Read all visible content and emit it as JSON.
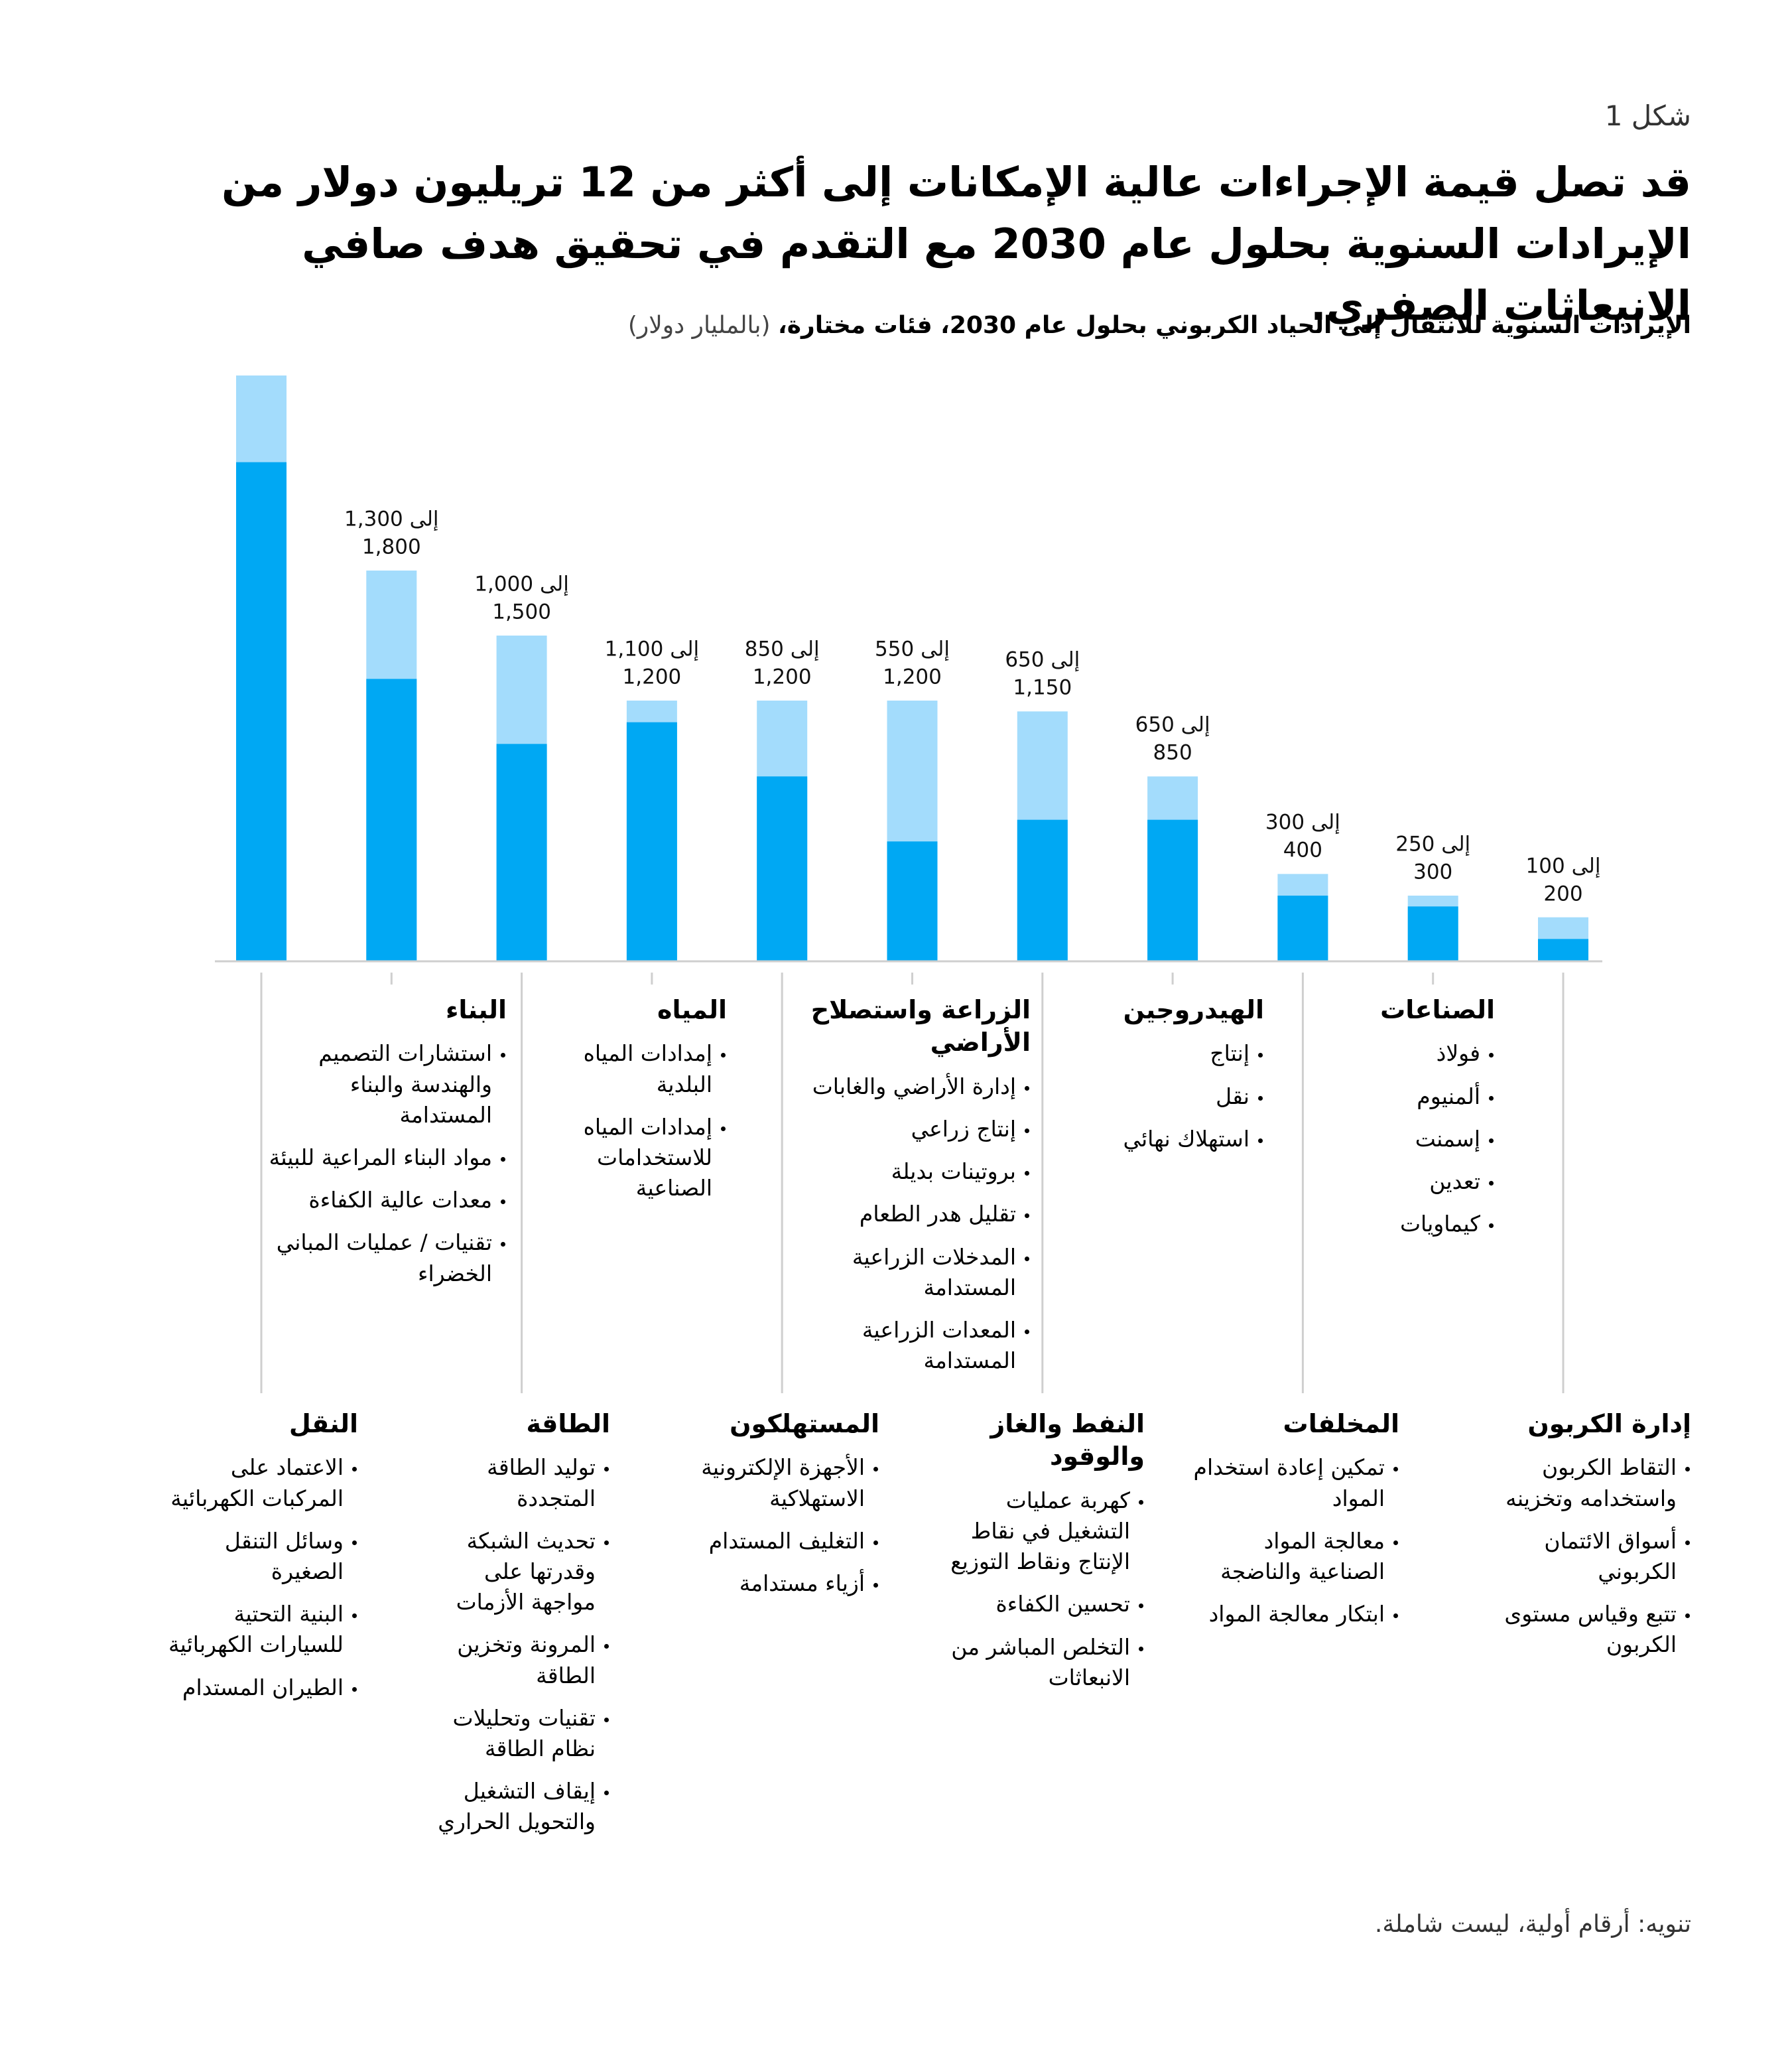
{
  "figure_label": "شكل 1",
  "title": "قد تصل قيمة الإجراءات عالية الإمكانات إلى أكثر من 12 تريليون دولار من الإيرادات السنوية بحلول عام 2030 مع التقدم في تحقيق هدف صافي الانبعاثات الصفري.",
  "note": "تنويه: أرقام أولية، ليست شاملة.",
  "chart_data": {
    "type": "bar",
    "subtitle": "الإيرادات السنوية للانتقال إلى الحياد الكربوني بحلول عام 2030، فئات مختارة،",
    "unit": "(بالمليار دولار)",
    "categories": [
      "النقل",
      "البناء",
      "الطاقة",
      "المياه",
      "المستهلكون",
      "الزراعة واستصلاح الأراضي",
      "النفط والغاز والوقود",
      "الهيدروجين",
      "المخلفات",
      "الصناعات",
      "إدارة الكربون"
    ],
    "category_items": [
      [
        "الاعتماد على المركبات الكهربائية",
        "وسائل التنقل الصغيرة",
        "البنية التحتية للسيارات الكهربائية",
        "الطيران المستدام"
      ],
      [
        "استشارات التصميم والهندسة والبناء المستدامة",
        "مواد البناء المراعية للبيئة",
        "معدات عالية الكفاءة",
        "تقنيات / عمليات المباني الخضراء"
      ],
      [
        "توليد الطاقة المتجددة",
        "تحديث الشبكة وقدرتها على مواجهة الأزمات",
        "المرونة وتخزين الطاقة",
        "تقنيات وتحليلات نظام الطاقة",
        "إيقاف التشغيل والتحويل الحراري"
      ],
      [
        "إمدادات المياه البلدية",
        "إمدادات المياه للاستخدامات الصناعية"
      ],
      [
        "الأجهزة الإلكترونية الاستهلاكية",
        "التغليف المستدام",
        "أزياء مستدامة"
      ],
      [
        "إدارة الأراضي والغابات",
        "إنتاج زراعي",
        "بروتينات بديلة",
        "تقليل هدر الطعام",
        "المدخلات الزراعية المستدامة",
        "المعدات الزراعية المستدامة"
      ],
      [
        "كهربة عمليات التشغيل في نقاط الإنتاج ونقاط التوزيع",
        "تحسين الكفاءة",
        "التخلص المباشر من الانبعاثات"
      ],
      [
        "إنتاج",
        "نقل",
        "استهلاك نهائي"
      ],
      [
        "تمكين إعادة استخدام المواد",
        "معالجة المواد الصناعية والناضجة",
        "ابتكار معالجة المواد"
      ],
      [
        "فولاذ",
        "ألمنيوم",
        "إسمنت",
        "تعدين",
        "كيماويات"
      ],
      [
        "التقاط الكربون واستخدامه وتخزينه",
        "أسواق الائتمان الكربوني",
        "تتبع وقياس مستوى الكربون"
      ]
    ],
    "series": [
      {
        "color": "#00a8f3",
        "values": [
          2300,
          1300,
          1000,
          1100,
          850,
          550,
          650,
          650,
          300,
          250,
          100
        ]
      },
      {
        "color": "#a3dcfc",
        "values": [
          2700,
          1800,
          1500,
          1200,
          1200,
          1200,
          1150,
          850,
          400,
          300,
          200
        ]
      }
    ],
    "range_labels": [
      null,
      "1,300 إلى 1,800",
      "1,000 إلى 1,500",
      "1,100 إلى 1,200",
      "850 إلى 1,200",
      "550 إلى 1,200",
      "650 إلى 1,150",
      "650 إلى 850",
      "300 إلى 400",
      "250 إلى 300",
      "100 إلى 200"
    ]
  }
}
